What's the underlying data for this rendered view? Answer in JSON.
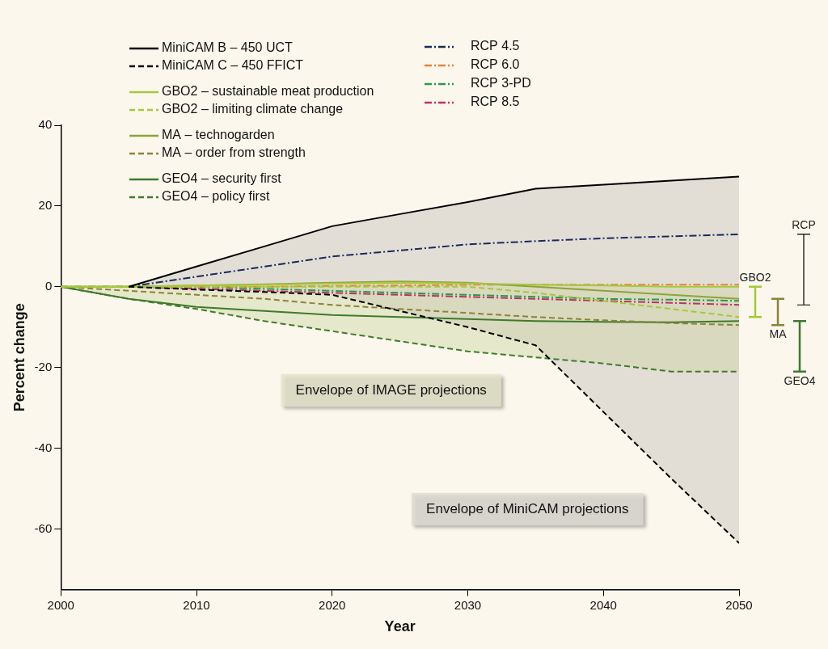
{
  "chart_data": {
    "type": "line",
    "x": [
      2000,
      2005,
      2010,
      2015,
      2020,
      2025,
      2030,
      2035,
      2040,
      2045,
      2050
    ],
    "xlim": [
      2000,
      2050
    ],
    "xticks": [
      2000,
      2010,
      2020,
      2030,
      2040,
      2050
    ],
    "ylim": [
      -75,
      40
    ],
    "yticks": [
      -60,
      -40,
      -20,
      0,
      20,
      40
    ],
    "x_label": "Year",
    "y_label": "Percent change",
    "grid": false,
    "legend": "upper left",
    "series": [
      {
        "name": "MiniCAM B – 450 UCT",
        "color": "#000000",
        "line_style": "solid",
        "values": [
          null,
          0,
          5,
          10,
          15,
          18,
          21,
          24.3,
          25.3,
          26.3,
          27.3
        ]
      },
      {
        "name": "MiniCAM C – 450 FFICT",
        "color": "#000000",
        "line_style": "dashed",
        "values": [
          null,
          0,
          -0.7,
          -1.3,
          -2,
          -6,
          -10,
          -14.5,
          -31,
          -47.5,
          -63.5
        ]
      },
      {
        "name": "GBO2 – sustainable meat production",
        "color": "#a4c93a",
        "line_style": "solid",
        "values": [
          0,
          0,
          0.3,
          0.5,
          0.8,
          1,
          0.8,
          0.5,
          0.3,
          0,
          0
        ]
      },
      {
        "name": "GBO2 – limiting climate change",
        "color": "#a4c93a",
        "line_style": "dashed",
        "values": [
          0,
          0,
          0,
          0,
          0,
          0,
          0,
          -1.5,
          -3.5,
          -5.5,
          -7.5
        ]
      },
      {
        "name": "MA – technogarden",
        "color": "#8fa33a",
        "line_style": "solid",
        "values": [
          0,
          0,
          0.3,
          0.6,
          1,
          1.3,
          1,
          0,
          -1,
          -2,
          -3
        ]
      },
      {
        "name": "MA – order from strength",
        "color": "#8c8339",
        "line_style": "dashed",
        "values": [
          0,
          -1,
          -2,
          -3,
          -4.5,
          -5.5,
          -6.5,
          -7.5,
          -8.3,
          -9,
          -9.5
        ]
      },
      {
        "name": "GEO4 – security first",
        "color": "#3f7a2e",
        "line_style": "solid",
        "values": [
          0,
          -3,
          -5,
          -6,
          -7,
          -7.5,
          -8,
          -8.5,
          -8.7,
          -8.8,
          -8.5
        ]
      },
      {
        "name": "GEO4 – policy first",
        "color": "#3f7a2e",
        "line_style": "dashed",
        "values": [
          0,
          -3,
          -5.5,
          -8.5,
          -11,
          -13.5,
          -16,
          -17.5,
          -19,
          -21,
          -21
        ]
      },
      {
        "name": "RCP 4.5",
        "color": "#1a2a5a",
        "line_style": "dashdot",
        "values": [
          null,
          0,
          2.5,
          5,
          7.5,
          9,
          10.5,
          11.3,
          12,
          12.5,
          13
        ]
      },
      {
        "name": "RCP 6.0",
        "color": "#e8823a",
        "line_style": "dashdot",
        "values": [
          0,
          0,
          0,
          0,
          0.2,
          0.3,
          0.5,
          0.5,
          0.5,
          0.5,
          0.5
        ]
      },
      {
        "name": "RCP 3-PD",
        "color": "#2a9a4a",
        "line_style": "dashdot",
        "values": [
          0,
          0,
          0,
          -0.5,
          -1,
          -1.5,
          -2,
          -2.5,
          -3,
          -3.2,
          -3.5
        ]
      },
      {
        "name": "RCP 8.5",
        "color": "#c0306a",
        "line_style": "dashdot",
        "values": [
          0,
          0,
          -0.5,
          -1,
          -1.5,
          -2,
          -2.5,
          -3,
          -3.5,
          -4,
          -4.5
        ]
      }
    ],
    "envelopes": [
      {
        "text": "Envelope of MiniCAM projections",
        "color": "#bdb8b6",
        "series": [
          "MiniCAM B – 450 UCT",
          "MiniCAM C – 450 FFICT"
        ]
      },
      {
        "text": "Envelope of IMAGE projections",
        "color": "#c9d19a",
        "series": [
          "GBO2 – sustainable meat production",
          "GBO2 – limiting climate change",
          "MA – technogarden",
          "MA – order from strength",
          "GEO4 – security first",
          "GEO4 – policy first"
        ]
      }
    ],
    "ranges": [
      {
        "text": "GBO2",
        "low": -7.5,
        "high": 0,
        "color": "#a4c93a"
      },
      {
        "text": "MA",
        "low": -9.5,
        "high": -3,
        "color": "#8c8339"
      },
      {
        "text": "GEO4",
        "low": -21,
        "high": -8.5,
        "color": "#3f7a2e"
      },
      {
        "text": "RCP",
        "low": -4.5,
        "high": 13,
        "color": "#000000"
      }
    ]
  }
}
